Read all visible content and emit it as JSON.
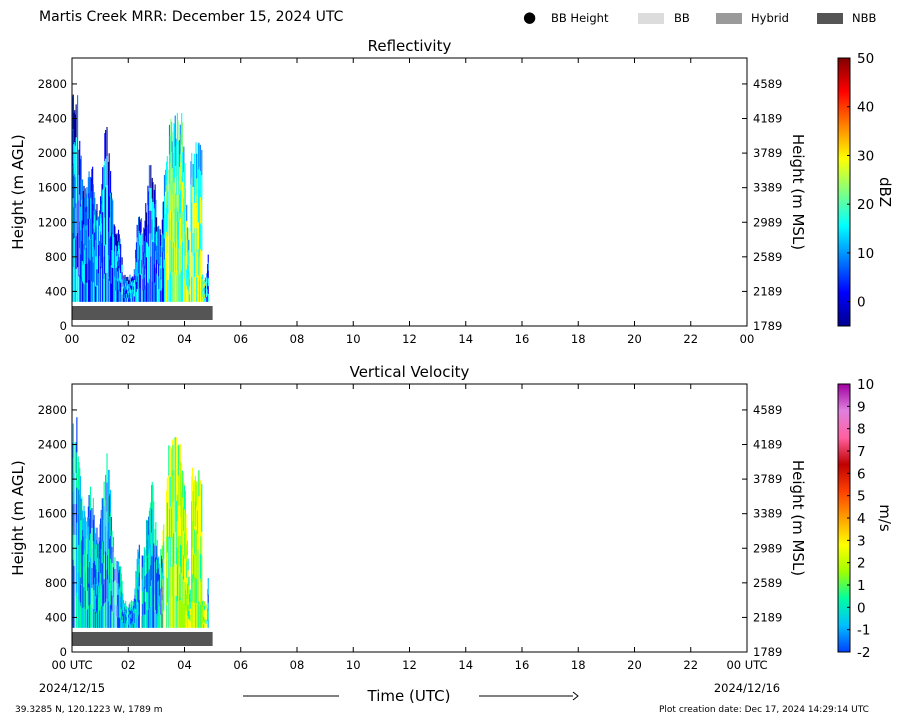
{
  "header": {
    "title": "Martis Creek MRR:  December 15, 2024 UTC",
    "legend": [
      {
        "label": "BB Height",
        "marker": "dot",
        "color": "#000000"
      },
      {
        "label": "BB",
        "marker": "box",
        "color": "#dcdcdc"
      },
      {
        "label": "Hybrid",
        "marker": "box",
        "color": "#9a9a9a"
      },
      {
        "label": "NBB",
        "marker": "box",
        "color": "#555555"
      }
    ]
  },
  "footer": {
    "coordinates": "39.3285 N, 120.1223 W, 1789 m",
    "creation_date": "Plot creation date: Dec 17, 2024 14:29:14 UTC",
    "x_axis_title": "Time (UTC)",
    "start_date": "2024/12/15",
    "end_date": "2024/12/16"
  },
  "chart_data": [
    {
      "type": "heatmap",
      "title": "Reflectivity",
      "ylabel": "Height (m AGL)",
      "ylabel_right": "Height (m MSL)",
      "xlabel": "Time (UTC)",
      "x_ticks": [
        "00",
        "02",
        "04",
        "06",
        "08",
        "10",
        "12",
        "14",
        "16",
        "18",
        "20",
        "22",
        "00"
      ],
      "xlim": [
        0,
        24
      ],
      "y_ticks": [
        0,
        400,
        800,
        1200,
        1600,
        2000,
        2400,
        2800
      ],
      "ylim": [
        0,
        3100
      ],
      "y_ticks_right": [
        "1789",
        "2189",
        "2589",
        "2989",
        "3389",
        "3789",
        "4189",
        "4589"
      ],
      "colorbar": {
        "label": "dBZ",
        "range": [
          -5,
          50
        ],
        "ticks": [
          0,
          10,
          20,
          30,
          40,
          50
        ],
        "colors": [
          "#00008f",
          "#0000ff",
          "#0080ff",
          "#00ffff",
          "#80ff80",
          "#ffff00",
          "#ff8000",
          "#ff0000",
          "#800000"
        ]
      },
      "data_extent_hours": [
        0,
        4.85
      ],
      "data_min_height": 280,
      "bb_type_bar": {
        "label": "NBB",
        "start_hour": 0,
        "end_hour": 5
      }
    },
    {
      "type": "heatmap",
      "title": "Vertical Velocity",
      "ylabel": "Height (m AGL)",
      "ylabel_right": "Height (m MSL)",
      "xlabel": "Time (UTC)",
      "x_ticks": [
        "00 UTC",
        "02",
        "04",
        "06",
        "08",
        "10",
        "12",
        "14",
        "16",
        "18",
        "20",
        "22",
        "00 UTC"
      ],
      "xlim": [
        0,
        24
      ],
      "y_ticks": [
        0,
        400,
        800,
        1200,
        1600,
        2000,
        2400,
        2800
      ],
      "ylim": [
        0,
        3100
      ],
      "y_ticks_right": [
        "1789",
        "2189",
        "2589",
        "2989",
        "3389",
        "3789",
        "4189",
        "4589"
      ],
      "colorbar": {
        "label": "m/s",
        "range": [
          -2,
          10
        ],
        "ticks": [
          -2,
          -1,
          0,
          1,
          2,
          3,
          4,
          5,
          6,
          7,
          8,
          9,
          10
        ],
        "colors": [
          "#0040ff",
          "#00c0ff",
          "#00ffa0",
          "#a0ff00",
          "#ffff00",
          "#ffa000",
          "#ff4000",
          "#c00000",
          "#ff60a0",
          "#e080e0",
          "#a000a0"
        ]
      },
      "data_extent_hours": [
        0,
        4.85
      ],
      "data_min_height": 280,
      "bb_type_bar": {
        "label": "NBB",
        "start_hour": 0,
        "end_hour": 5
      }
    }
  ]
}
